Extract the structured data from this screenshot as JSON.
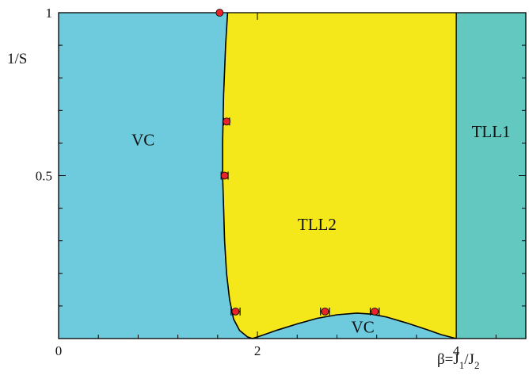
{
  "chart_data": {
    "type": "area",
    "title": "",
    "xlabel": {
      "main": "β=J",
      "sub1": "1",
      "slash": "/J",
      "sub2": "2"
    },
    "ylabel": "1/S",
    "xlim": [
      0,
      4.7
    ],
    "ylim": [
      0,
      1.0
    ],
    "x_ticks": [
      {
        "value": 0,
        "label": "0"
      },
      {
        "value": 2,
        "label": "2"
      },
      {
        "value": 4,
        "label": "4"
      }
    ],
    "y_ticks": [
      {
        "value": 0.5,
        "label": "0.5"
      },
      {
        "value": 1.0,
        "label": "1"
      }
    ],
    "minor_x_step": 0.4,
    "minor_y_step": 0.1,
    "grid": false,
    "colors": {
      "VC": "#6ecbdd",
      "TLL2": "#f5e81a",
      "TLL1": "#62c8c0",
      "boundary": "#000000",
      "points": "#e8232a"
    },
    "phases": [
      {
        "name": "VC",
        "label": "VC",
        "label_at": [
          0.85,
          0.61
        ]
      },
      {
        "name": "TLL2",
        "label": "TLL2",
        "label_at": [
          2.6,
          0.35
        ]
      },
      {
        "name": "VC-pocket",
        "label": "VC",
        "label_at": [
          3.06,
          0.035
        ]
      },
      {
        "name": "TLL1",
        "label": "TLL1",
        "label_at": [
          4.35,
          0.635
        ]
      }
    ],
    "boundary_vc_tll2": [
      [
        1.7,
        1.0
      ],
      [
        1.68,
        0.9
      ],
      [
        1.66,
        0.75
      ],
      [
        1.65,
        0.6
      ],
      [
        1.65,
        0.5
      ],
      [
        1.66,
        0.4
      ],
      [
        1.67,
        0.3
      ],
      [
        1.69,
        0.2
      ],
      [
        1.72,
        0.12
      ],
      [
        1.76,
        0.06
      ],
      [
        1.82,
        0.025
      ],
      [
        1.9,
        0.005
      ],
      [
        1.95,
        0.0
      ],
      [
        2.05,
        0.01
      ],
      [
        2.2,
        0.026
      ],
      [
        2.4,
        0.045
      ],
      [
        2.6,
        0.062
      ],
      [
        2.8,
        0.073
      ],
      [
        3.0,
        0.078
      ],
      [
        3.15,
        0.075
      ],
      [
        3.3,
        0.066
      ],
      [
        3.5,
        0.048
      ],
      [
        3.7,
        0.028
      ],
      [
        3.85,
        0.012
      ],
      [
        4.0,
        0.0
      ]
    ],
    "boundary_tll2_tll1": [
      [
        4.0,
        0.0
      ],
      [
        4.0,
        1.0
      ]
    ],
    "data_points": [
      {
        "x": 1.62,
        "y": 1.0,
        "xerr": 0.0
      },
      {
        "x": 1.69,
        "y": 0.666,
        "xerr": 0.03
      },
      {
        "x": 1.67,
        "y": 0.5,
        "xerr": 0.035
      },
      {
        "x": 1.78,
        "y": 0.083,
        "xerr": 0.045
      },
      {
        "x": 2.68,
        "y": 0.083,
        "xerr": 0.045
      },
      {
        "x": 3.18,
        "y": 0.083,
        "xerr": 0.045
      }
    ]
  }
}
